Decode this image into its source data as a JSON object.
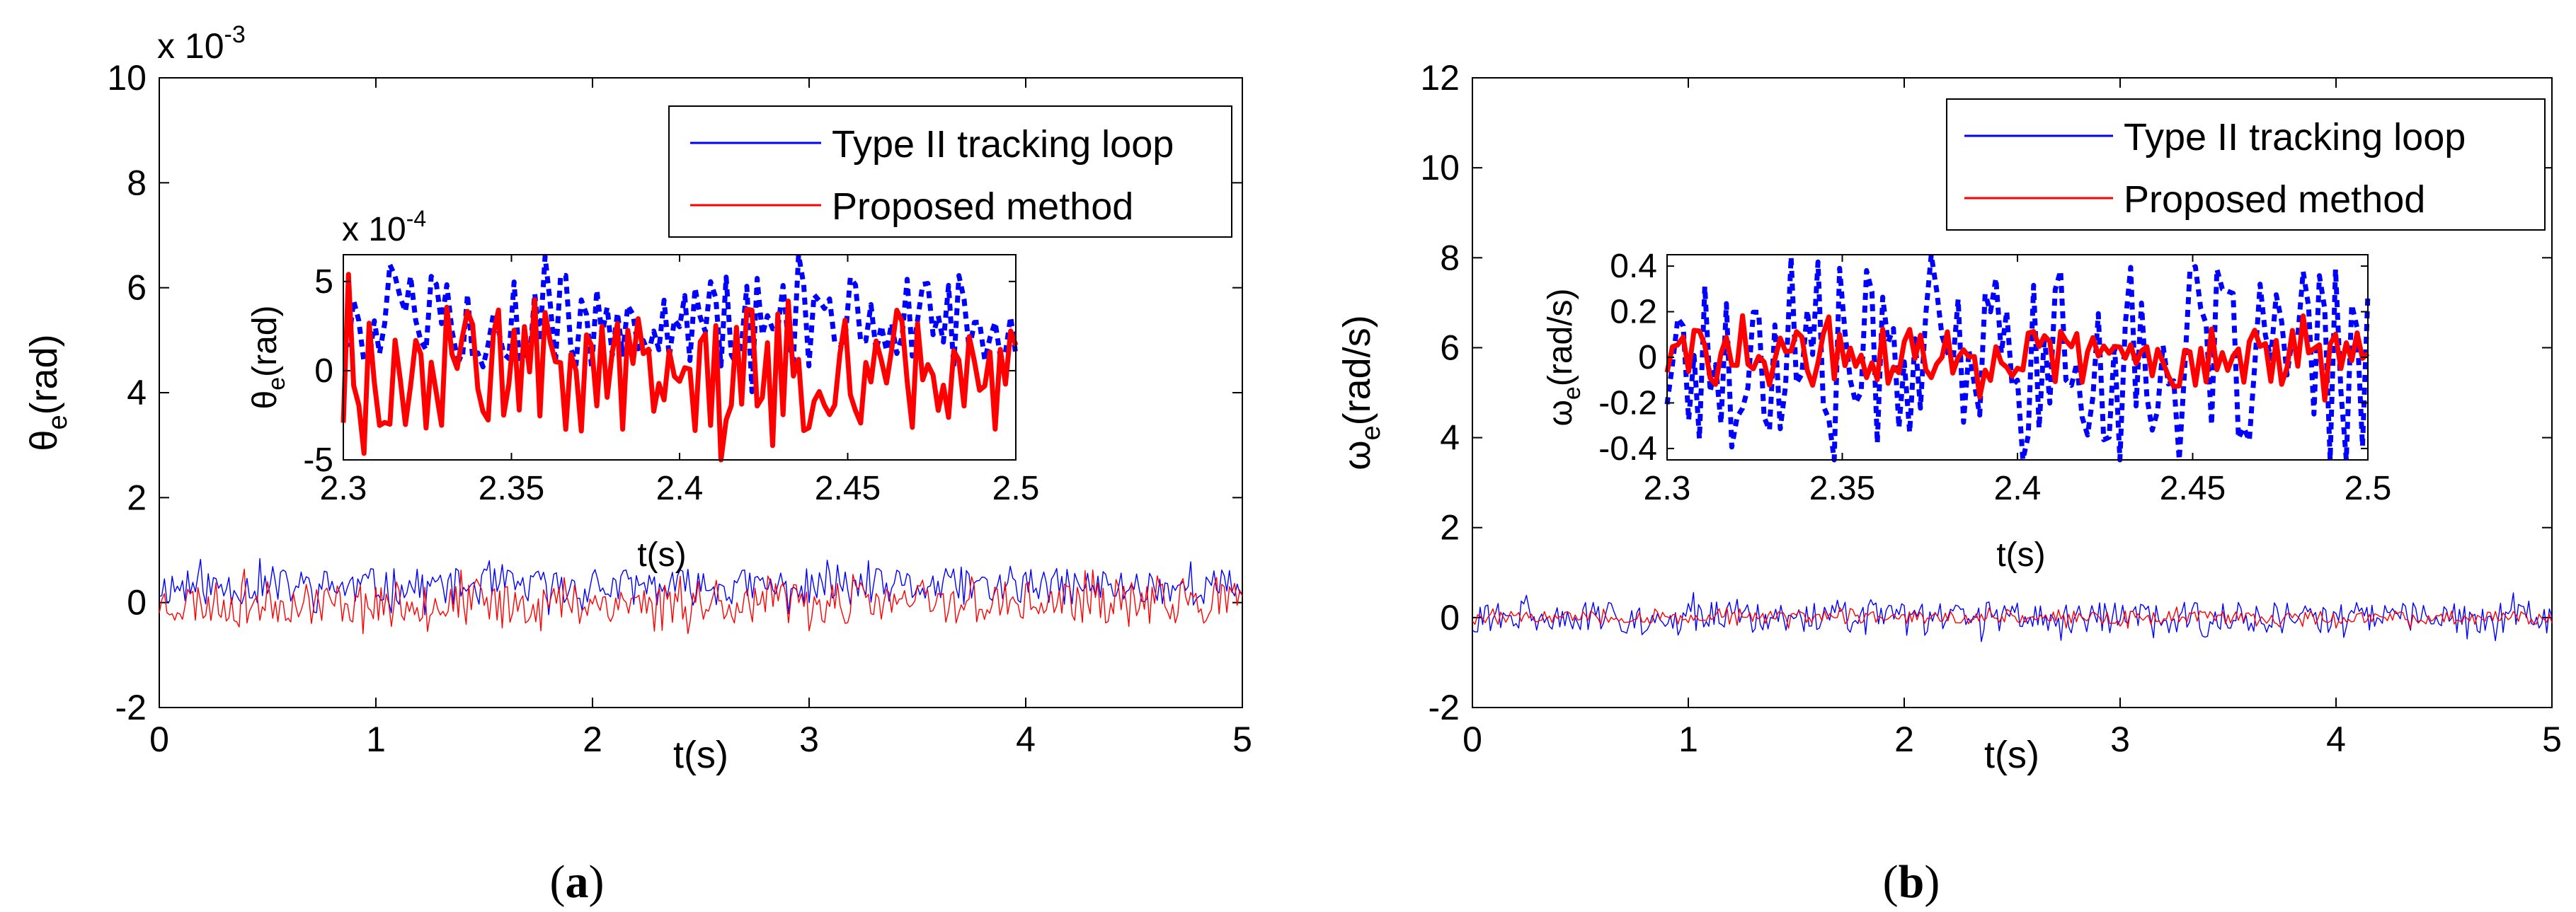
{
  "colors": {
    "series_a": "#0000ff",
    "series_b": "#ff0000",
    "axes": "#000000"
  },
  "panels": [
    {
      "caption": {
        "open": "(",
        "letter": "a",
        "close": ")"
      },
      "chart_data": {
        "type": "line",
        "title": "",
        "xlabel": "t(s)",
        "ylabel": "θe(rad)",
        "y_symbol": "θ",
        "y_sub": "e",
        "y_unit": "(rad)",
        "xlim": [
          0,
          5
        ],
        "ylim": [
          -2,
          10
        ],
        "xticks": [
          "0",
          "1",
          "2",
          "3",
          "4",
          "5"
        ],
        "yticks": [
          "-2",
          "0",
          "2",
          "4",
          "6",
          "8",
          "10"
        ],
        "y_multiplier": {
          "base": "x 10",
          "exp": "-3"
        },
        "legend_position": "top-right",
        "series": [
          {
            "name": "Type II tracking loop",
            "color": "#0000ff",
            "center": 0.3,
            "amplitude": 0.35,
            "samples": 420,
            "seed": 11
          },
          {
            "name": "Proposed method",
            "color": "#ff0000",
            "center": 0.0,
            "amplitude": 0.4,
            "samples": 420,
            "seed": 23
          }
        ],
        "inset": {
          "xlabel": "t(s)",
          "ylabel": "θe(rad)",
          "y_symbol": "θ",
          "y_sub": "e",
          "y_unit": "(rad)",
          "xlim": [
            2.3,
            2.5
          ],
          "ylim": [
            -5,
            6.5
          ],
          "xticks": [
            "2.3",
            "2.35",
            "2.4",
            "2.45",
            "2.5"
          ],
          "yticks": [
            "-5",
            "0",
            "5"
          ],
          "y_multiplier": {
            "base": "x 10",
            "exp": "-4"
          },
          "series": [
            {
              "name": "Type II tracking loop",
              "color": "#0000ff",
              "dashed": true,
              "center": 2.8,
              "amplitude": 2.6,
              "samples": 130,
              "seed": 5
            },
            {
              "name": "Proposed method",
              "color": "#ff0000",
              "dashed": false,
              "center": 0.0,
              "amplitude": 3.5,
              "samples": 130,
              "seed": 9
            }
          ]
        }
      }
    },
    {
      "caption": {
        "open": "(",
        "letter": "b",
        "close": ")"
      },
      "chart_data": {
        "type": "line",
        "title": "",
        "xlabel": "t(s)",
        "ylabel": "ωe(rad/s)",
        "y_symbol": "ω",
        "y_sub": "e",
        "y_unit": "(rad/s)",
        "xlim": [
          0,
          5
        ],
        "ylim": [
          -2,
          12
        ],
        "xticks": [
          "0",
          "1",
          "2",
          "3",
          "4",
          "5"
        ],
        "yticks": [
          "-2",
          "0",
          "2",
          "4",
          "6",
          "8",
          "10",
          "12"
        ],
        "legend_position": "top-right",
        "series": [
          {
            "name": "Type II tracking loop",
            "color": "#0000ff",
            "center": 0.0,
            "amplitude": 0.35,
            "samples": 420,
            "seed": 31
          },
          {
            "name": "Proposed method",
            "color": "#ff0000",
            "center": 0.0,
            "amplitude": 0.15,
            "samples": 420,
            "seed": 47
          }
        ],
        "inset": {
          "xlabel": "t(s)",
          "ylabel": "ωe(rad/s)",
          "y_symbol": "ω",
          "y_sub": "e",
          "y_unit": "(rad/s)",
          "xlim": [
            2.3,
            2.5
          ],
          "ylim": [
            -0.45,
            0.45
          ],
          "xticks": [
            "2.3",
            "2.35",
            "2.4",
            "2.45",
            "2.5"
          ],
          "yticks": [
            "0.4",
            "0.2",
            "0",
            "-0.2",
            "-0.4"
          ],
          "series": [
            {
              "name": "Type II tracking loop",
              "color": "#0000ff",
              "dashed": true,
              "center": 0.0,
              "amplitude": 0.4,
              "samples": 130,
              "seed": 17
            },
            {
              "name": "Proposed method",
              "color": "#ff0000",
              "dashed": false,
              "center": 0.0,
              "amplitude": 0.13,
              "samples": 130,
              "seed": 29
            }
          ]
        }
      }
    }
  ]
}
